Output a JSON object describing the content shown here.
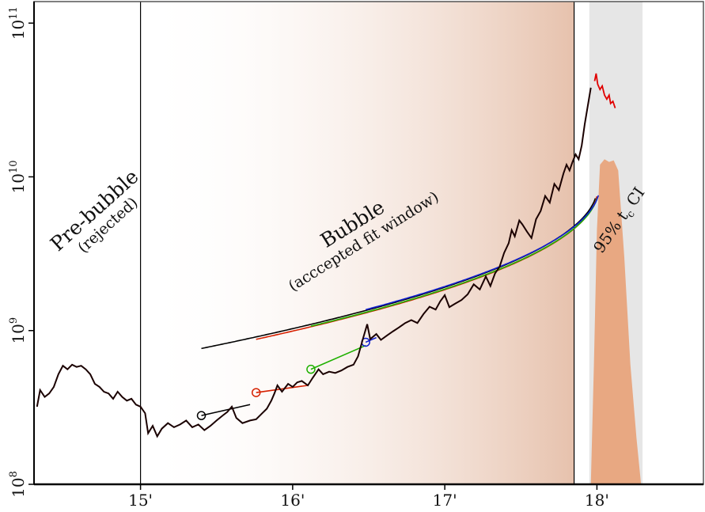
{
  "chart_data": {
    "type": "line",
    "title": "",
    "xlabel": "",
    "ylabel": "",
    "x_scale": "linear",
    "y_scale": "log",
    "xlim": [
      2014.3,
      2018.7
    ],
    "ylim": [
      100000000,
      100000000000
    ],
    "x_ticks": [
      {
        "value": 2015,
        "label": "15'"
      },
      {
        "value": 2016,
        "label": "16'"
      },
      {
        "value": 2017,
        "label": "17'"
      },
      {
        "value": 2018,
        "label": "18'"
      }
    ],
    "y_ticks": [
      {
        "value": 100000000,
        "base": "10",
        "exp": "8"
      },
      {
        "value": 1000000000,
        "base": "10",
        "exp": "9"
      },
      {
        "value": 10000000000,
        "base": "10",
        "exp": "10"
      },
      {
        "value": 100000000000,
        "base": "10",
        "exp": "11"
      }
    ],
    "grid": false,
    "regions": {
      "pre_bubble_end": 2015.0,
      "bubble_end": 2017.85,
      "ci_start": 2017.95,
      "ci_end": 2018.3
    },
    "colors": {
      "price": "#1a0000",
      "post_price": "#e00000",
      "fit_black": "#000000",
      "fit_red": "#d62000",
      "fit_green": "#1fb000",
      "fit_blue": "#1020d0",
      "bubble_shade": "#d9a080",
      "ci_band": "#e6e6e6",
      "ci_density": "#e8a882"
    },
    "price_series": [
      [
        2014.32,
        320000000
      ],
      [
        2014.34,
        410000000
      ],
      [
        2014.37,
        370000000
      ],
      [
        2014.4,
        390000000
      ],
      [
        2014.43,
        430000000
      ],
      [
        2014.46,
        520000000
      ],
      [
        2014.49,
        590000000
      ],
      [
        2014.52,
        560000000
      ],
      [
        2014.55,
        600000000
      ],
      [
        2014.58,
        580000000
      ],
      [
        2014.61,
        590000000
      ],
      [
        2014.64,
        560000000
      ],
      [
        2014.67,
        520000000
      ],
      [
        2014.7,
        450000000
      ],
      [
        2014.73,
        430000000
      ],
      [
        2014.76,
        400000000
      ],
      [
        2014.79,
        390000000
      ],
      [
        2014.82,
        360000000
      ],
      [
        2014.85,
        400000000
      ],
      [
        2014.88,
        370000000
      ],
      [
        2014.91,
        350000000
      ],
      [
        2014.94,
        360000000
      ],
      [
        2014.97,
        330000000
      ],
      [
        2015.0,
        320000000
      ],
      [
        2015.03,
        290000000
      ],
      [
        2015.05,
        215000000
      ],
      [
        2015.08,
        240000000
      ],
      [
        2015.11,
        205000000
      ],
      [
        2015.14,
        230000000
      ],
      [
        2015.18,
        250000000
      ],
      [
        2015.22,
        235000000
      ],
      [
        2015.26,
        245000000
      ],
      [
        2015.3,
        260000000
      ],
      [
        2015.34,
        235000000
      ],
      [
        2015.38,
        245000000
      ],
      [
        2015.42,
        225000000
      ],
      [
        2015.46,
        240000000
      ],
      [
        2015.5,
        260000000
      ],
      [
        2015.54,
        280000000
      ],
      [
        2015.57,
        295000000
      ],
      [
        2015.6,
        320000000
      ],
      [
        2015.63,
        270000000
      ],
      [
        2015.67,
        250000000
      ],
      [
        2015.72,
        260000000
      ],
      [
        2015.76,
        265000000
      ],
      [
        2015.8,
        290000000
      ],
      [
        2015.83,
        310000000
      ],
      [
        2015.86,
        350000000
      ],
      [
        2015.88,
        390000000
      ],
      [
        2015.9,
        440000000
      ],
      [
        2015.93,
        400000000
      ],
      [
        2015.97,
        450000000
      ],
      [
        2016.0,
        430000000
      ],
      [
        2016.03,
        460000000
      ],
      [
        2016.06,
        470000000
      ],
      [
        2016.1,
        440000000
      ],
      [
        2016.13,
        490000000
      ],
      [
        2016.17,
        560000000
      ],
      [
        2016.2,
        520000000
      ],
      [
        2016.24,
        540000000
      ],
      [
        2016.28,
        530000000
      ],
      [
        2016.32,
        550000000
      ],
      [
        2016.36,
        580000000
      ],
      [
        2016.4,
        600000000
      ],
      [
        2016.43,
        680000000
      ],
      [
        2016.46,
        870000000
      ],
      [
        2016.49,
        1100000000
      ],
      [
        2016.51,
        880000000
      ],
      [
        2016.55,
        950000000
      ],
      [
        2016.58,
        870000000
      ],
      [
        2016.62,
        930000000
      ],
      [
        2016.66,
        990000000
      ],
      [
        2016.7,
        1050000000
      ],
      [
        2016.74,
        1120000000
      ],
      [
        2016.78,
        1170000000
      ],
      [
        2016.82,
        1120000000
      ],
      [
        2016.86,
        1280000000
      ],
      [
        2016.9,
        1430000000
      ],
      [
        2016.94,
        1370000000
      ],
      [
        2016.97,
        1550000000
      ],
      [
        2017.0,
        1700000000
      ],
      [
        2017.03,
        1420000000
      ],
      [
        2017.07,
        1500000000
      ],
      [
        2017.11,
        1580000000
      ],
      [
        2017.15,
        1720000000
      ],
      [
        2017.19,
        2000000000
      ],
      [
        2017.23,
        1850000000
      ],
      [
        2017.27,
        2250000000
      ],
      [
        2017.3,
        1950000000
      ],
      [
        2017.33,
        2350000000
      ],
      [
        2017.36,
        2600000000
      ],
      [
        2017.39,
        3200000000
      ],
      [
        2017.42,
        3700000000
      ],
      [
        2017.44,
        4500000000
      ],
      [
        2017.46,
        4100000000
      ],
      [
        2017.49,
        5200000000
      ],
      [
        2017.51,
        4900000000
      ],
      [
        2017.54,
        4400000000
      ],
      [
        2017.57,
        4000000000
      ],
      [
        2017.6,
        5300000000
      ],
      [
        2017.63,
        6000000000
      ],
      [
        2017.66,
        7500000000
      ],
      [
        2017.69,
        6800000000
      ],
      [
        2017.72,
        9000000000
      ],
      [
        2017.75,
        8200000000
      ],
      [
        2017.78,
        10500000000
      ],
      [
        2017.8,
        12000000000
      ],
      [
        2017.82,
        11000000000
      ],
      [
        2017.84,
        12500000000
      ],
      [
        2017.86,
        14000000000
      ],
      [
        2017.88,
        13000000000
      ],
      [
        2017.9,
        16000000000
      ],
      [
        2017.92,
        22000000000
      ],
      [
        2017.94,
        29000000000
      ],
      [
        2017.96,
        38000000000
      ]
    ],
    "post_series": [
      [
        2017.985,
        42000000000
      ],
      [
        2017.995,
        47000000000
      ],
      [
        2018.005,
        40000000000
      ],
      [
        2018.02,
        37000000000
      ],
      [
        2018.035,
        39000000000
      ],
      [
        2018.05,
        34000000000
      ],
      [
        2018.065,
        32000000000
      ],
      [
        2018.08,
        34000000000
      ],
      [
        2018.09,
        30000000000
      ],
      [
        2018.105,
        31000000000
      ],
      [
        2018.12,
        28000000000
      ]
    ],
    "fits": [
      {
        "color": "#000000",
        "start": [
          2015.4,
          280000000
        ],
        "end": [
          2015.72,
          330000000
        ]
      },
      {
        "color": "#d62000",
        "start": [
          2015.76,
          395000000
        ],
        "end": [
          2016.1,
          440000000
        ]
      },
      {
        "color": "#1fb000",
        "start": [
          2016.12,
          560000000
        ],
        "end": [
          2016.48,
          800000000
        ]
      },
      {
        "color": "#1020d0",
        "start": [
          2016.48,
          840000000
        ],
        "end": [
          2016.55,
          900000000
        ]
      }
    ],
    "fit_curves": [
      {
        "color": "#000000",
        "A": 8600000000,
        "tc": 2018.003,
        "s": 1.5
      },
      {
        "color": "#d62000",
        "A": 8300000000,
        "tc": 2018.005,
        "s": 1.5
      },
      {
        "color": "#1fb000",
        "A": 8400000000,
        "tc": 2018.01,
        "s": 1.5
      },
      {
        "color": "#1020d0",
        "A": 8800000000,
        "tc": 2018.02,
        "s": 1.5
      }
    ],
    "ci_density": {
      "x": [
        2017.96,
        2017.98,
        2018.0,
        2018.02,
        2018.05,
        2018.08,
        2018.11,
        2018.14,
        2018.18,
        2018.22,
        2018.26,
        2018.29
      ],
      "y": [
        100000000,
        600000000,
        4500000000,
        12000000000,
        13000000000,
        12500000000,
        12800000000,
        11000000000,
        3000000000,
        600000000,
        200000000,
        100000000
      ]
    },
    "annotations": {
      "pre_bubble": "Pre-bubble",
      "pre_bubble_sub": "(rejected)",
      "bubble": "Bubble",
      "bubble_sub": "(acccepted fit window)",
      "ci_main": "95% t",
      "ci_sub": "c",
      "ci_tail": " CI"
    }
  }
}
